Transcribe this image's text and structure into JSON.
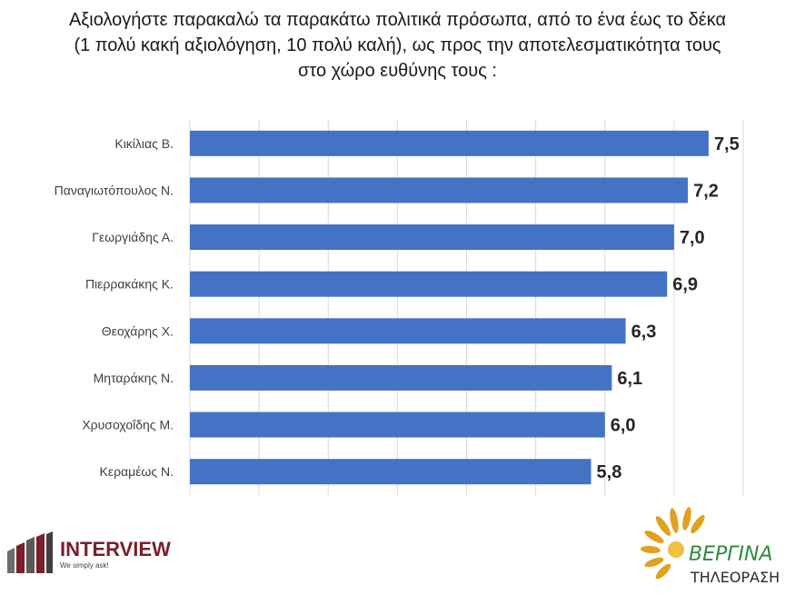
{
  "title_lines": [
    "Αξιολογήστε παρακαλώ τα παρακάτω πολιτικά πρόσωπα, από το ένα έως το δέκα",
    "(1 πολύ κακή αξιολόγηση, 10 πολύ καλή), ως προς την αποτελεσματικότητα τους",
    "στο χώρο ευθύνης τους :"
  ],
  "chart_data": {
    "type": "bar",
    "orientation": "horizontal",
    "categories": [
      "Κικίλιας Β.",
      "Παναγιωτόπουλος Ν.",
      "Γεωργιάδης Α.",
      "Πιερρακάκης Κ.",
      "Θεοχάρης Χ.",
      "Μηταράκης Ν.",
      "Χρυσοχοΐδης Μ.",
      "Κεραμέως Ν."
    ],
    "values": [
      7.5,
      7.2,
      7.0,
      6.9,
      6.3,
      6.1,
      6.0,
      5.8
    ],
    "value_labels": [
      "7,5",
      "7,2",
      "7,0",
      "6,9",
      "6,3",
      "6,1",
      "6,0",
      "5,8"
    ],
    "xlim": [
      0,
      8
    ],
    "grid": "vertical",
    "bar_color": "#4472C4"
  },
  "logos": {
    "interview_name": "INTERVIEW",
    "interview_tagline": "We simply ask!",
    "vergina_name": "ΒΕΡΓΙΝΑ",
    "vergina_sub": "ΤΗΛΕΟΡΑΣΗ"
  }
}
